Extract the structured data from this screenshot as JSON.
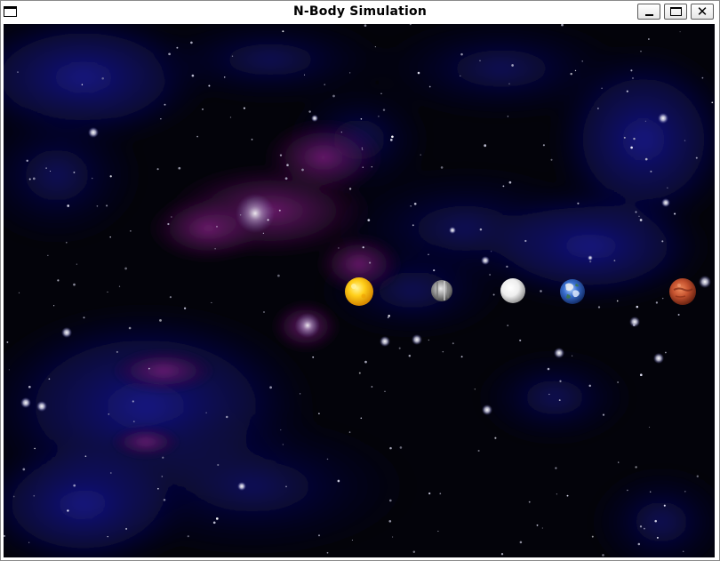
{
  "window": {
    "title": "N-Body Simulation",
    "controls": {
      "minimize_icon": "minimize-icon",
      "maximize_icon": "maximize-icon",
      "close_icon": "close-icon"
    }
  },
  "scene": {
    "background": "starfield-nebula",
    "bodies": [
      {
        "name": "sun",
        "color": "#ffc21a"
      },
      {
        "name": "mercury",
        "color": "#9a9a9a"
      },
      {
        "name": "venus",
        "color": "#f2f2f2"
      },
      {
        "name": "earth",
        "color": "#3a6fd0"
      },
      {
        "name": "mars",
        "color": "#c5522f"
      }
    ]
  }
}
